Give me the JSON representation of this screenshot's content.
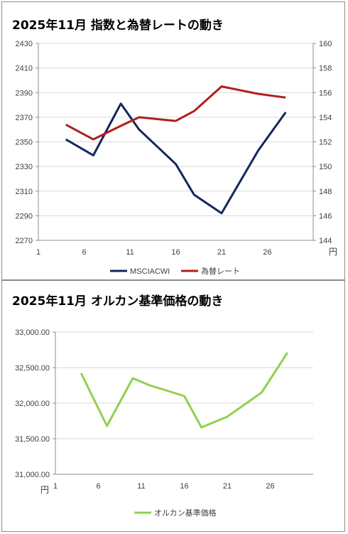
{
  "charts": [
    {
      "title": "2025年11月 指数と為替レートの動き"
    },
    {
      "title": "2025年11月 オルカン基準価格の動き"
    }
  ],
  "chart_data": [
    {
      "type": "line",
      "title": "2025年11月 指数と為替レートの動き",
      "x_ticks": [
        "1",
        "6",
        "11",
        "16",
        "21",
        "26"
      ],
      "x_unit": "円",
      "xlim": [
        1,
        31
      ],
      "left_axis": {
        "ylim": [
          2270,
          2430
        ],
        "ticks": [
          "2270",
          "2290",
          "2310",
          "2330",
          "2350",
          "2370",
          "2390",
          "2410",
          "2430"
        ]
      },
      "right_axis": {
        "ylim": [
          144,
          160
        ],
        "ticks": [
          "144",
          "146",
          "148",
          "150",
          "152",
          "154",
          "156",
          "158",
          "160"
        ]
      },
      "grid": "horizontal",
      "legend": "bottom",
      "series": [
        {
          "name": "MSCIACWI",
          "axis": "left",
          "color": "#13275e",
          "x": [
            4,
            7,
            10,
            12,
            16,
            18,
            21,
            25,
            28
          ],
          "values": [
            2352,
            2339,
            2381,
            2360,
            2332,
            2307,
            2292,
            2343,
            2374
          ]
        },
        {
          "name": "為替レート",
          "axis": "right",
          "color": "#b01f1f",
          "x": [
            4,
            7,
            10,
            12,
            16,
            18,
            21,
            25,
            28
          ],
          "values": [
            153.4,
            152.2,
            153.3,
            154.0,
            153.7,
            154.5,
            156.5,
            155.9,
            155.6
          ]
        }
      ]
    },
    {
      "type": "line",
      "title": "2025年11月 オルカン基準価格の動き",
      "x_ticks": [
        "1",
        "6",
        "11",
        "16",
        "21",
        "26"
      ],
      "y_unit": "円",
      "xlim": [
        1,
        31
      ],
      "ylim": [
        31000,
        33000
      ],
      "y_ticks": [
        "31,000.00",
        "31,500.00",
        "32,000.00",
        "32,500.00",
        "33,000.00"
      ],
      "grid": "horizontal",
      "legend": "bottom",
      "series": [
        {
          "name": "オルカン基準価格",
          "color": "#92d050",
          "x": [
            4,
            7,
            10,
            12,
            16,
            18,
            21,
            25,
            28
          ],
          "values": [
            32420,
            31680,
            32350,
            32250,
            32100,
            31660,
            31810,
            32150,
            32710
          ]
        }
      ]
    }
  ]
}
